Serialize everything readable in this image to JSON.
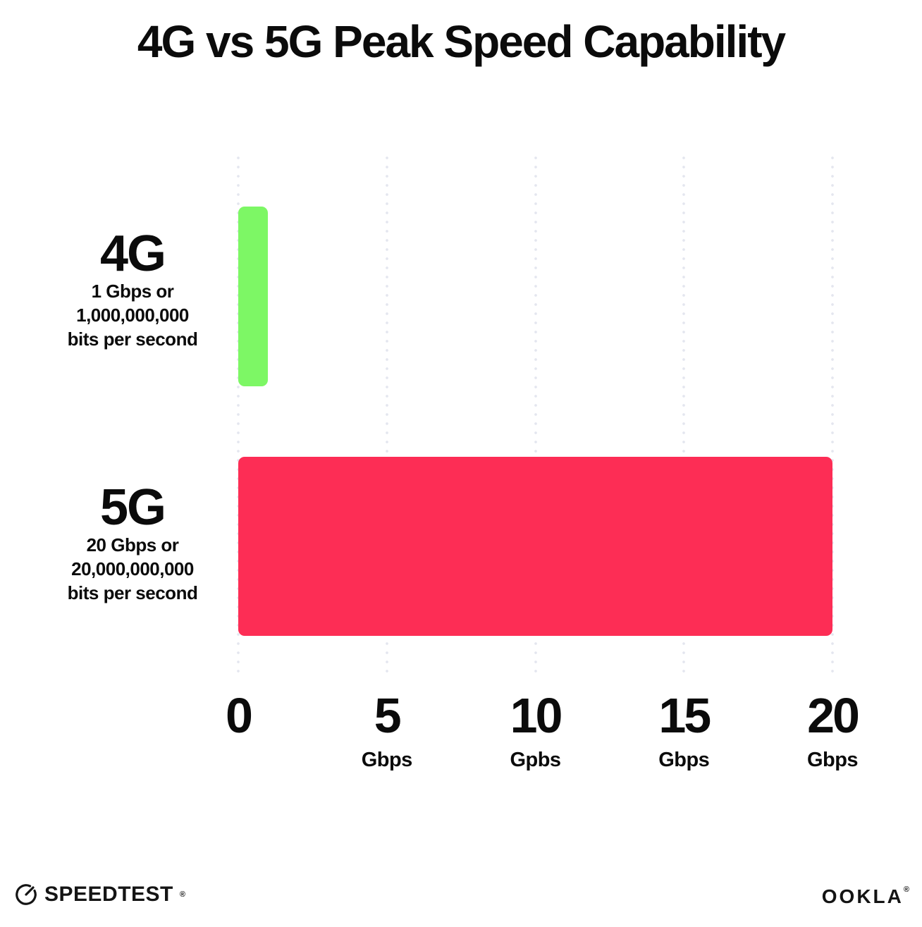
{
  "title": "4G vs 5G Peak Speed Capability",
  "colors": {
    "bar_4g": "#7DF765",
    "bar_5g": "#FD2D55",
    "grid_dot": "#E4E6EF",
    "text": "#0B0B0B",
    "background": "#FFFFFF"
  },
  "chart_data": {
    "type": "bar",
    "orientation": "horizontal",
    "title": "4G vs 5G Peak Speed Capability",
    "categories": [
      "4G",
      "5G"
    ],
    "values": [
      1,
      20
    ],
    "unit": "Gbps",
    "xlim": [
      0,
      20
    ],
    "grid": "dotted-vertical",
    "legend": "none",
    "bar_colors": [
      "#7DF765",
      "#FD2D55"
    ],
    "rows": [
      {
        "label": "4G",
        "sub_lines": [
          "1 Gbps or",
          "1,000,000,000",
          "bits per second"
        ]
      },
      {
        "label": "5G",
        "sub_lines": [
          "20 Gbps or",
          "20,000,000,000",
          "bits per second"
        ]
      }
    ],
    "x_ticks": [
      {
        "value": "0",
        "unit": ""
      },
      {
        "value": "5",
        "unit": "Gbps"
      },
      {
        "value": "10",
        "unit": "Gpbs"
      },
      {
        "value": "15",
        "unit": "Gbps"
      },
      {
        "value": "20",
        "unit": "Gbps"
      }
    ]
  },
  "footer": {
    "speedtest_label": "SPEEDTEST",
    "speedtest_trademark": "®",
    "ookla_label": "OOKLA",
    "ookla_trademark": "®"
  }
}
